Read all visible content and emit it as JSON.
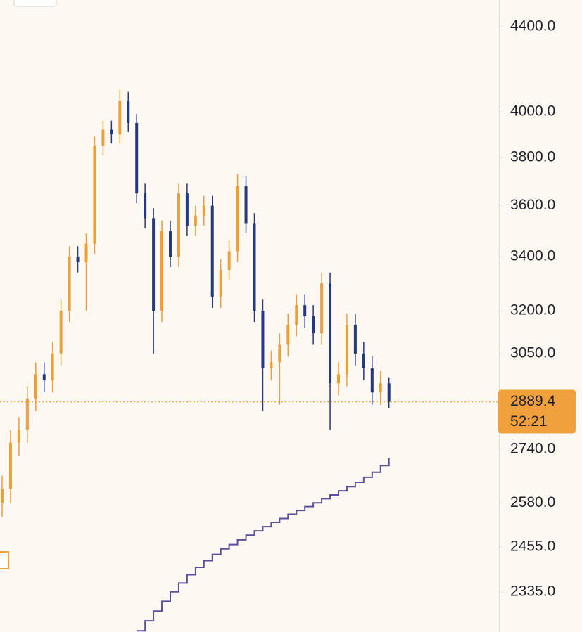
{
  "chart_data": {
    "type": "candlestick",
    "log_scale": true,
    "ylim": [
      2232,
      4534
    ],
    "yticks": [
      {
        "value": 4400,
        "label": "4400.0"
      },
      {
        "value": 4000,
        "label": "4000.0"
      },
      {
        "value": 3800,
        "label": "3800.0"
      },
      {
        "value": 3600,
        "label": "3600.0"
      },
      {
        "value": 3400,
        "label": "3400.0"
      },
      {
        "value": 3200,
        "label": "3200.0"
      },
      {
        "value": 3050,
        "label": "3050.0"
      },
      {
        "value": 2740,
        "label": "2740.0"
      },
      {
        "value": 2580,
        "label": "2580.0"
      },
      {
        "value": 2455,
        "label": "2455.0"
      },
      {
        "value": 2335,
        "label": "2335.0"
      }
    ],
    "up_color": "#e9a03b",
    "down_color": "#26397a",
    "ma_color": "#5a4f9a",
    "price_color": "#f0a03c",
    "open": [
      2580,
      2620,
      2760,
      2800,
      2900,
      2980,
      2960,
      3050,
      3200,
      3400,
      3380,
      3450,
      3850,
      3920,
      3900,
      4050,
      3950,
      3650,
      3550,
      3200,
      3500,
      3400,
      3650,
      3520,
      3560,
      3600,
      3250,
      3350,
      3420,
      3680,
      3530,
      3200,
      3000,
      3020,
      3080,
      3150,
      3220,
      3180,
      3120,
      3300,
      2950,
      2980,
      3150,
      3050,
      3000,
      2920,
      2950
    ],
    "high": [
      2660,
      2800,
      2840,
      2940,
      3020,
      3020,
      3090,
      3240,
      3440,
      3440,
      3490,
      3890,
      3960,
      3960,
      4100,
      4090,
      3990,
      3690,
      3590,
      3540,
      3540,
      3690,
      3690,
      3600,
      3640,
      3640,
      3390,
      3460,
      3730,
      3720,
      3570,
      3240,
      3060,
      3120,
      3190,
      3260,
      3260,
      3220,
      3340,
      3340,
      3020,
      3190,
      3190,
      3090,
      3040,
      2990,
      2970
    ],
    "low": [
      2540,
      2580,
      2720,
      2760,
      2860,
      2920,
      2920,
      3010,
      3160,
      3340,
      3200,
      3410,
      3810,
      3860,
      3860,
      3910,
      3610,
      3510,
      3050,
      3160,
      3360,
      3360,
      3480,
      3480,
      3520,
      3210,
      3210,
      3310,
      3380,
      3490,
      3160,
      2860,
      2960,
      2880,
      3040,
      3110,
      3140,
      3080,
      3080,
      2800,
      2910,
      2940,
      3010,
      2960,
      2880,
      2880,
      2870
    ],
    "close": [
      2620,
      2760,
      2800,
      2900,
      2980,
      2960,
      3050,
      3200,
      3400,
      3380,
      3450,
      3850,
      3920,
      3900,
      4050,
      3950,
      3650,
      3550,
      3200,
      3500,
      3400,
      3650,
      3520,
      3560,
      3600,
      3250,
      3350,
      3420,
      3680,
      3530,
      3200,
      3000,
      3020,
      3080,
      3150,
      3220,
      3180,
      3120,
      3300,
      2950,
      2980,
      3150,
      3050,
      3000,
      2920,
      2950,
      2889.4
    ],
    "ma": [
      null,
      null,
      null,
      null,
      null,
      null,
      null,
      null,
      null,
      null,
      null,
      null,
      null,
      null,
      null,
      null,
      2235,
      2260,
      2285,
      2310,
      2335,
      2358,
      2380,
      2400,
      2418,
      2435,
      2450,
      2462,
      2475,
      2488,
      2500,
      2512,
      2524,
      2535,
      2547,
      2558,
      2569,
      2580,
      2592,
      2603,
      2615,
      2627,
      2640,
      2655,
      2670,
      2690,
      2712
    ],
    "last_price": 2889.4,
    "countdown": "52:21"
  }
}
